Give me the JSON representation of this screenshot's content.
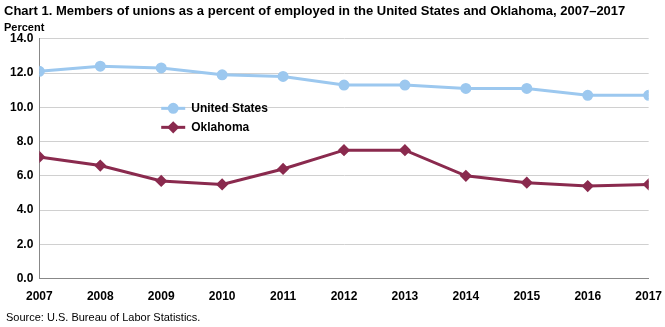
{
  "chart_data": {
    "type": "line",
    "title": "Chart 1. Members of unions as a percent of employed in the United States and Oklahoma, 2007–2017",
    "ylabel": "Percent",
    "source": "Source: U.S. Bureau of Labor Statistics.",
    "categories": [
      "2007",
      "2008",
      "2009",
      "2010",
      "2011",
      "2012",
      "2013",
      "2014",
      "2015",
      "2016",
      "2017"
    ],
    "series": [
      {
        "name": "United States",
        "color": "#9cc8ef",
        "marker": "circle",
        "values": [
          12.1,
          12.4,
          12.3,
          11.9,
          11.8,
          11.3,
          11.3,
          11.1,
          11.1,
          10.7,
          10.7
        ]
      },
      {
        "name": "Oklahoma",
        "color": "#8a2a4e",
        "marker": "diamond",
        "values": [
          7.1,
          6.6,
          5.7,
          5.5,
          6.4,
          7.5,
          7.5,
          6.0,
          5.6,
          5.4,
          5.5
        ]
      }
    ],
    "ylim": [
      0,
      14
    ],
    "yticks": [
      {
        "value": 0,
        "label": "0.0"
      },
      {
        "value": 2,
        "label": "2.0"
      },
      {
        "value": 4,
        "label": "4.0"
      },
      {
        "value": 6,
        "label": "6.0"
      },
      {
        "value": 8,
        "label": "8.0"
      },
      {
        "value": 10,
        "label": "10.0"
      },
      {
        "value": 12,
        "label": "12.0"
      },
      {
        "value": 14,
        "label": "14.0"
      }
    ],
    "grid": true,
    "legend": "left"
  }
}
